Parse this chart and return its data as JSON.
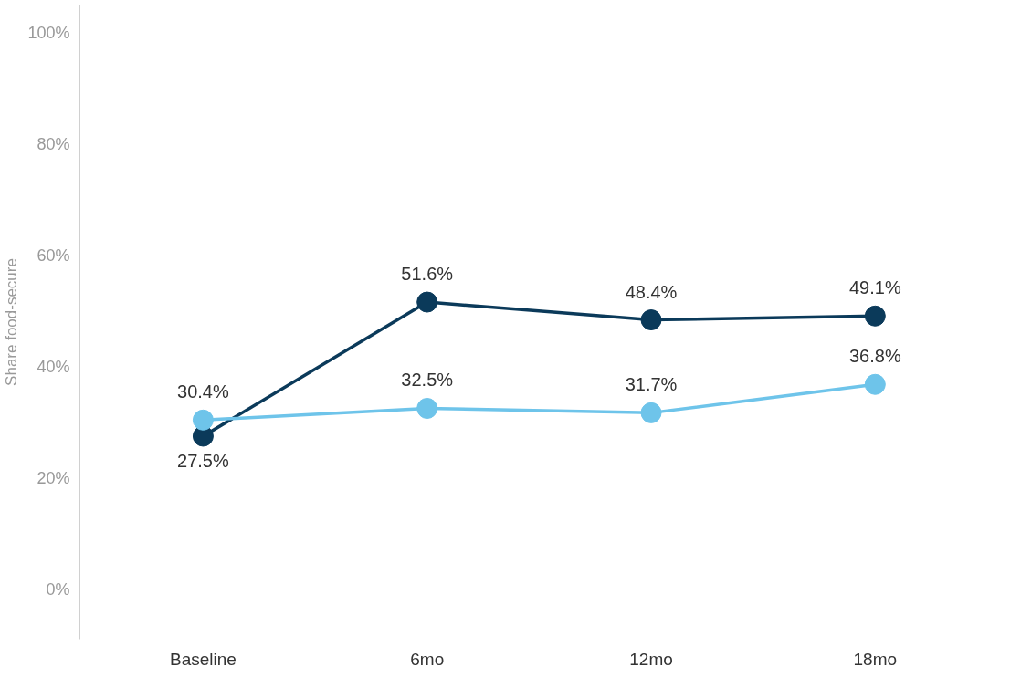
{
  "chart_data": {
    "type": "line",
    "ylabel": "Share food-secure",
    "categories": [
      "Baseline",
      "6mo",
      "12mo",
      "18mo"
    ],
    "series": [
      {
        "color": "#0b3a5a",
        "values": [
          27.5,
          51.6,
          48.4,
          49.1
        ],
        "value_labels": [
          "27.5%",
          "51.6%",
          "48.4%",
          "49.1%"
        ]
      },
      {
        "color": "#6ec4ea",
        "values": [
          30.4,
          32.5,
          31.7,
          36.8
        ],
        "value_labels": [
          "30.4%",
          "32.5%",
          "31.7%",
          "36.8%"
        ]
      }
    ],
    "ylim": [
      -9,
      105
    ],
    "yticks": [
      {
        "value": 0,
        "label": "0%"
      },
      {
        "value": 20,
        "label": "20%"
      },
      {
        "value": 40,
        "label": "40%"
      },
      {
        "value": 60,
        "label": "60%"
      },
      {
        "value": 80,
        "label": "80%"
      },
      {
        "value": 100,
        "label": "100%"
      }
    ],
    "marker": "circle"
  }
}
